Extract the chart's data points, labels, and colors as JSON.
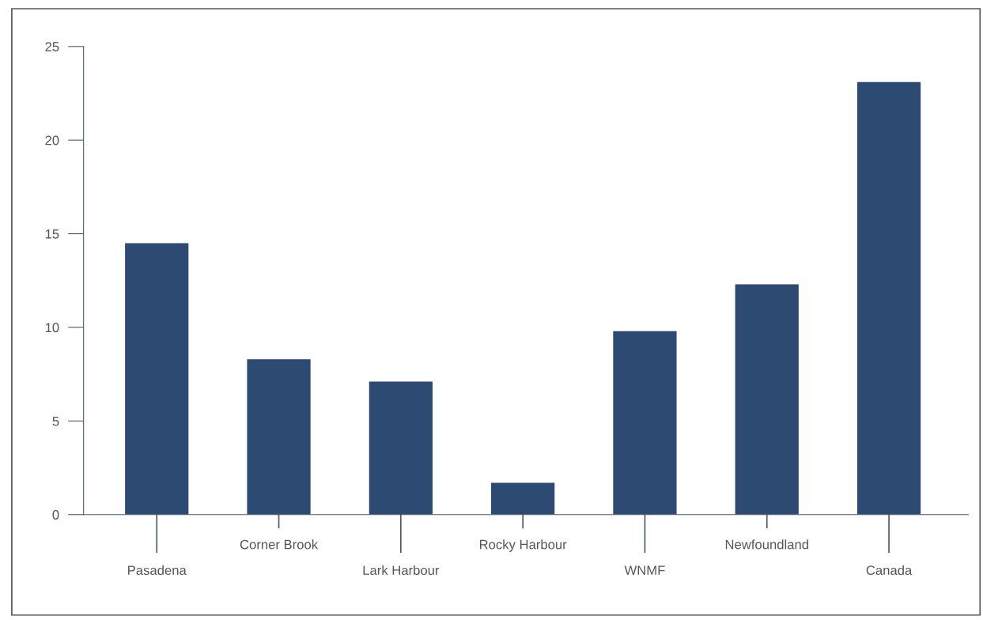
{
  "chart_data": {
    "type": "bar",
    "categories": [
      "Pasadena",
      "Corner Brook",
      "Lark Harbour",
      "Rocky Harbour",
      "WNMF",
      "Newfoundland",
      "Canada"
    ],
    "values": [
      14.5,
      8.3,
      7.1,
      1.7,
      9.8,
      12.3,
      23.1
    ],
    "color": "#2d4b72",
    "ylim": [
      0,
      25
    ],
    "yticks": [
      0,
      5,
      10,
      15,
      20,
      25
    ],
    "grid": false
  }
}
